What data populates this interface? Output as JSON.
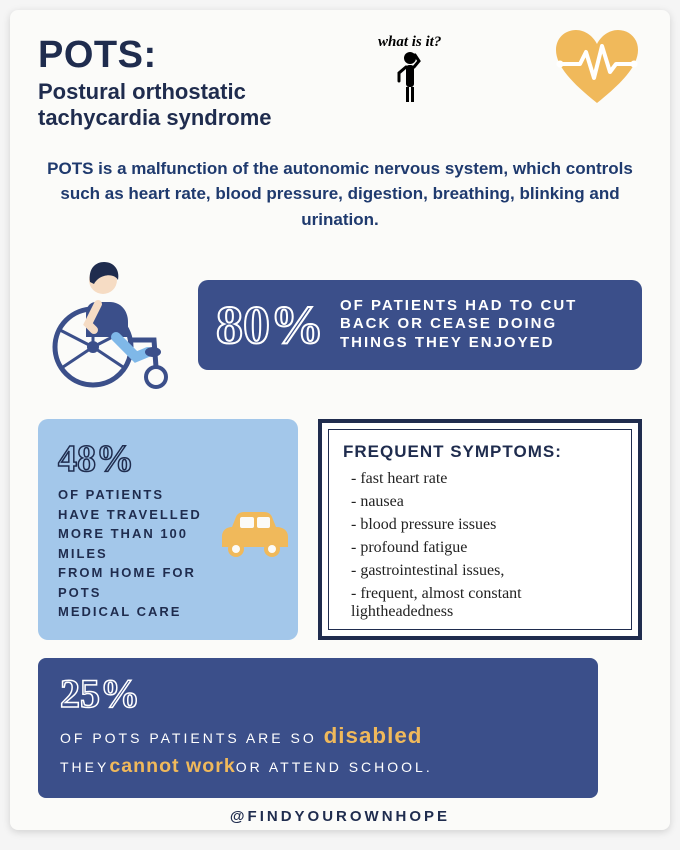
{
  "colors": {
    "text_dark": "#1f2c4e",
    "navy": "#3b4f8a",
    "light_blue": "#a3c7ea",
    "gold": "#f0b95b",
    "white": "#ffffff",
    "bg": "#fbfbf9"
  },
  "header": {
    "title_main": "POTS:",
    "title_main_fontsize": 38,
    "title_sub": "Postural orthostatic tachycardia syndrome",
    "title_sub_fontsize": 22,
    "whatisit": "what is it?",
    "whatisit_fontsize": 15
  },
  "intro": {
    "text": "POTS is a malfunction of the autonomic nervous system, which controls such as heart rate, blood pressure, digestion, breathing, blinking and urination.",
    "fontsize": 17,
    "color": "#1f3a6e",
    "lineheight": 1.5
  },
  "stat80": {
    "pct": "80%",
    "pct_fontsize": 54,
    "text": "OF PATIENTS HAD TO CUT BACK OR CEASE DOING THINGS THEY ENJOYED",
    "text_fontsize": 15,
    "bg": "#3b4f8a",
    "fg": "#ffffff"
  },
  "stat48": {
    "pct": "48%",
    "pct_fontsize": 38,
    "text_pre": "OF PATIENTS HAVE TRAVELLED",
    "text_bold1": "MORE THAN 100 MILES",
    "text_mid": "FROM HOME FOR POTS",
    "text_bold2": "MEDICAL CARE",
    "fontsize": 13,
    "bg": "#a3c7ea",
    "fg": "#1f2c4e"
  },
  "symptoms": {
    "title": "FREQUENT SYMPTOMS:",
    "title_fontsize": 17,
    "list_fontsize": 16,
    "border_color": "#1f2c4e",
    "items": [
      "fast heart rate",
      "nausea",
      "blood pressure issues",
      "profound fatigue",
      "gastrointestinal issues,",
      "frequent, almost constant lightheadedness"
    ]
  },
  "stat25": {
    "pct": "25%",
    "pct_fontsize": 40,
    "text_a": "OF POTS PATIENTS ARE SO ",
    "em1": "disabled",
    "text_b": "THEY",
    "em2": "cannot work",
    "text_c": "OR ATTEND SCHOOL.",
    "fontsize": 14,
    "bg": "#3b4f8a",
    "em_color": "#f0b95b"
  },
  "footer": {
    "text": "@FINDYOUROWNHOPE",
    "fontsize": 15,
    "color": "#1f2c4e"
  },
  "icons": {
    "heart_color": "#f0b95b",
    "heart_line": "#ffffff",
    "person_color": "#000000",
    "wheelchair_primary": "#3b4f8a",
    "wheelchair_skin": "#f6dcc4",
    "wheelchair_hair": "#1f2c4e",
    "car_color": "#f0b95b"
  }
}
